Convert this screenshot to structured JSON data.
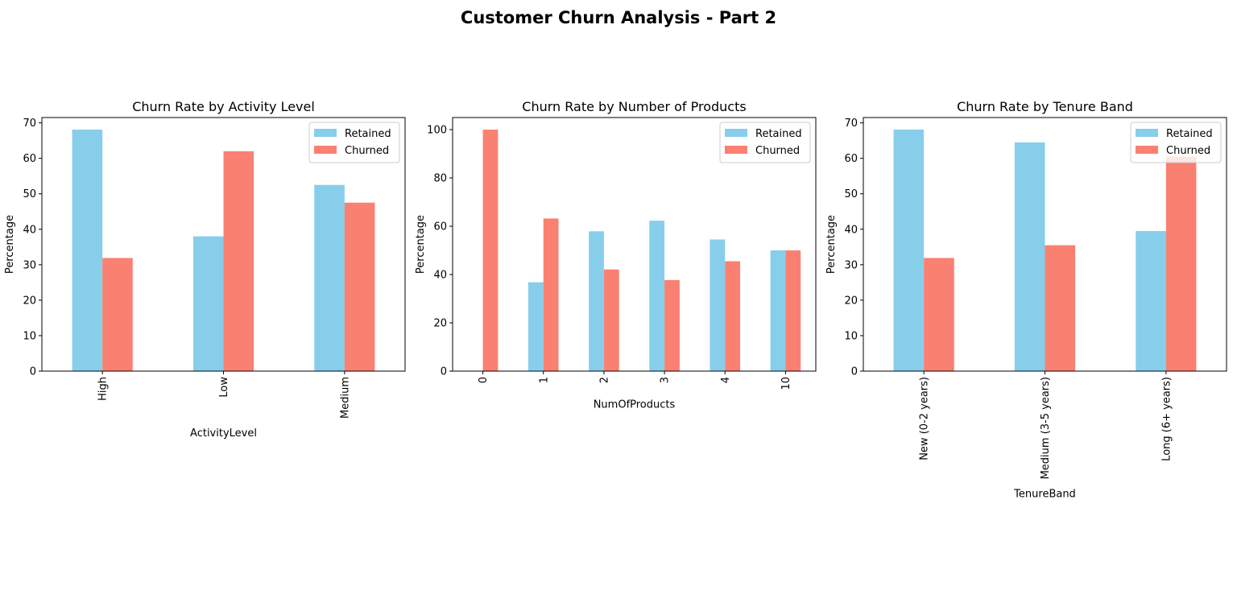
{
  "figure": {
    "suptitle": "Customer Churn Analysis - Part 2"
  },
  "colors": {
    "retained": "#87CEEB",
    "churned": "#FA8072"
  },
  "chart_data": [
    {
      "type": "bar",
      "title": "Churn Rate by Activity Level",
      "xlabel": "ActivityLevel",
      "ylabel": "Percentage",
      "categories": [
        "High",
        "Low",
        "Medium"
      ],
      "series": [
        {
          "name": "Retained",
          "values": [
            68.1,
            38.0,
            52.5
          ]
        },
        {
          "name": "Churned",
          "values": [
            31.9,
            62.0,
            47.5
          ]
        }
      ],
      "ylim": [
        0,
        71.5
      ],
      "yticks": [
        0,
        10,
        20,
        30,
        40,
        50,
        60,
        70
      ],
      "xtick_rotation": 90,
      "legend": "upper right",
      "grid": false
    },
    {
      "type": "bar",
      "title": "Churn Rate by Number of Products",
      "xlabel": "NumOfProducts",
      "ylabel": "Percentage",
      "categories": [
        "0",
        "1",
        "2",
        "3",
        "4",
        "10"
      ],
      "series": [
        {
          "name": "Retained",
          "values": [
            0,
            36.8,
            57.9,
            62.3,
            54.5,
            50.0
          ]
        },
        {
          "name": "Churned",
          "values": [
            100,
            63.2,
            42.1,
            37.7,
            45.5,
            50.0
          ]
        }
      ],
      "ylim": [
        0,
        105
      ],
      "yticks": [
        0,
        20,
        40,
        60,
        80,
        100
      ],
      "xtick_rotation": 90,
      "legend": "upper right",
      "grid": false
    },
    {
      "type": "bar",
      "title": "Churn Rate by Tenure Band",
      "xlabel": "TenureBand",
      "ylabel": "Percentage",
      "categories": [
        "New (0-2 years)",
        "Medium (3-5 years)",
        "Long (6+ years)"
      ],
      "series": [
        {
          "name": "Retained",
          "values": [
            68.1,
            64.5,
            39.5
          ]
        },
        {
          "name": "Churned",
          "values": [
            31.9,
            35.5,
            60.5
          ]
        }
      ],
      "ylim": [
        0,
        71.5
      ],
      "yticks": [
        0,
        10,
        20,
        30,
        40,
        50,
        60,
        70
      ],
      "xtick_rotation": 90,
      "legend": "upper right",
      "grid": false
    }
  ]
}
